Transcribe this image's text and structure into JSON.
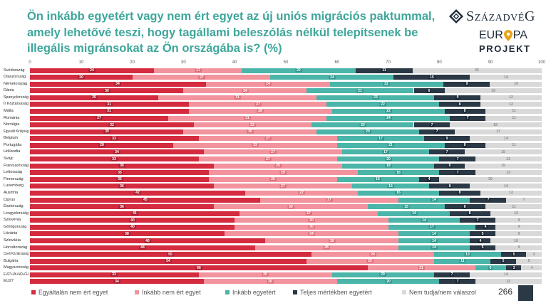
{
  "theme": {
    "title_color": "#3ea69b",
    "brand_color": "#1e2b3a",
    "pin_color": "#e8a317",
    "page_badge_color": "#2b3845"
  },
  "brand": {
    "logo_icon": "diamond-logo-icon",
    "name": "SzázadvéG",
    "europa_prefix": "EUR",
    "europa_pin_icon": "map-pin-icon",
    "europa_suffix": "PA",
    "projekt": "PROJEKT"
  },
  "chart_data": {
    "type": "bar",
    "orientation": "horizontal",
    "stacked": true,
    "title": "Ön inkább egyetért vagy nem ért egyet az új uniós migrációs paktummal, amely lehetővé teszi, hogy tagállami beleszólás nélkül telepítsenek be illegális migránsokat az Ön országába is? (%)",
    "xlim": [
      0,
      100
    ],
    "xticks": [
      0,
      10,
      20,
      30,
      40,
      50,
      60,
      70,
      80,
      90,
      100
    ],
    "grid": false,
    "legend": "bottom",
    "categories": [
      "Svédország",
      "Olaszország",
      "Németország",
      "Dánia",
      "Spanyolország",
      "Ír Köztársaság",
      "Málta",
      "Románia",
      "Norvégia",
      "Egyesült Királyság",
      "Belgium",
      "Portugália",
      "Hollandia",
      "Svájc",
      "Franciaország",
      "Lettország",
      "Finnország",
      "Luxemburg",
      "Ausztria",
      "Ciprus",
      "Észtország",
      "Lengyelország",
      "Szlovénia",
      "Görögország",
      "Litvánia",
      "Szlovákia",
      "Horvátország",
      "Cseh Köztársaság",
      "Bulgária",
      "Magyarország",
      "EU27+UK+NO+CH",
      "EU27"
    ],
    "series": [
      {
        "name": "Egyáltalán nem ért egyet",
        "color": "#d42b3f",
        "values": [
          24,
          20,
          34,
          30,
          25,
          31,
          31,
          27,
          32,
          30,
          33,
          28,
          34,
          33,
          36,
          35,
          35,
          36,
          42,
          45,
          36,
          41,
          40,
          40,
          38,
          46,
          44,
          55,
          54,
          66,
          33,
          34
        ]
      },
      {
        "name": "Inkább nem ért egyet",
        "color": "#f2939d",
        "values": [
          17,
          27,
          24,
          24,
          31,
          27,
          28,
          31,
          23,
          26,
          27,
          32,
          27,
          27,
          25,
          29,
          25,
          27,
          22,
          27,
          30,
          27,
          30,
          30,
          34,
          26,
          28,
          24,
          25,
          21,
          26,
          26
        ]
      },
      {
        "name": "Inkább egyetért",
        "color": "#4ab5a8",
        "values": [
          22,
          24,
          22,
          21,
          23,
          22,
          22,
          24,
          20,
          20,
          17,
          21,
          17,
          20,
          18,
          16,
          16,
          15,
          16,
          14,
          15,
          14,
          14,
          17,
          14,
          14,
          14,
          13,
          11,
          6,
          20,
          20
        ]
      },
      {
        "name": "Teljes mértékben egyetért",
        "color": "#2b3845",
        "values": [
          11,
          15,
          9,
          6,
          9,
          8,
          8,
          7,
          7,
          7,
          9,
          8,
          7,
          7,
          6,
          7,
          4,
          8,
          8,
          7,
          8,
          8,
          7,
          4,
          5,
          4,
          5,
          5,
          5,
          3,
          7,
          7
        ]
      },
      {
        "name": "Nem tudja/nem válaszol",
        "color": "#d9d9d9",
        "values": [
          25,
          14,
          10,
          19,
          12,
          12,
          11,
          11,
          18,
          17,
          14,
          11,
          15,
          13,
          15,
          13,
          20,
          14,
          12,
          7,
          11,
          10,
          9,
          9,
          9,
          10,
          9,
          3,
          5,
          4,
          14,
          13
        ]
      }
    ]
  },
  "footer": {
    "page_number": "266"
  }
}
